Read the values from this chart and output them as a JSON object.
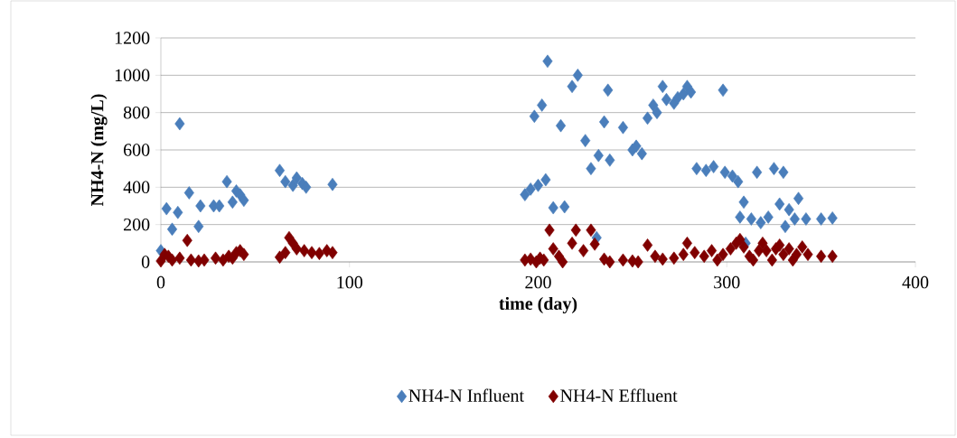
{
  "chart_data": {
    "type": "scatter",
    "xlabel": "time (day)",
    "ylabel": "NH4-N (mg/L)",
    "xlim": [
      0,
      400
    ],
    "xticks": [
      0,
      100,
      200,
      300,
      400
    ],
    "ylim": [
      0,
      1200
    ],
    "yticks": [
      0,
      200,
      400,
      600,
      800,
      1000,
      1200
    ],
    "grid": "y",
    "legend": "bottom",
    "marker": "diamond",
    "series": [
      {
        "name": "NH4-N Influent",
        "color": "#4a7ebb",
        "x": [
          0,
          3,
          6,
          9,
          10,
          15,
          20,
          21,
          28,
          31,
          35,
          38,
          40,
          42,
          44,
          63,
          66,
          70,
          72,
          75,
          77,
          91,
          193,
          196,
          198,
          200,
          202,
          204,
          205,
          208,
          212,
          214,
          218,
          221,
          225,
          228,
          231,
          232,
          235,
          237,
          238,
          245,
          250,
          252,
          255,
          258,
          261,
          263,
          266,
          268,
          272,
          274,
          277,
          279,
          281,
          284,
          289,
          293,
          298,
          299,
          303,
          306,
          307,
          309,
          310,
          313,
          316,
          318,
          322,
          325,
          328,
          330,
          331,
          333,
          336,
          338,
          342,
          350,
          356
        ],
        "values": [
          60,
          285,
          175,
          265,
          740,
          370,
          190,
          300,
          300,
          300,
          430,
          320,
          380,
          360,
          330,
          490,
          430,
          410,
          450,
          420,
          400,
          415,
          360,
          390,
          780,
          410,
          840,
          440,
          1075,
          290,
          730,
          295,
          940,
          1000,
          650,
          500,
          130,
          570,
          750,
          920,
          545,
          720,
          600,
          620,
          580,
          770,
          840,
          800,
          940,
          870,
          850,
          880,
          900,
          940,
          910,
          500,
          490,
          510,
          920,
          480,
          460,
          430,
          240,
          320,
          100,
          230,
          480,
          210,
          240,
          500,
          310,
          480,
          190,
          280,
          230,
          340,
          230,
          230,
          235
        ]
      },
      {
        "name": "NH4-N Effluent",
        "color": "#800000",
        "x": [
          0,
          2,
          4,
          6,
          10,
          14,
          16,
          20,
          23,
          29,
          33,
          36,
          38,
          40,
          42,
          44,
          63,
          66,
          68,
          70,
          72,
          76,
          80,
          84,
          88,
          91,
          193,
          196,
          199,
          201,
          203,
          206,
          208,
          211,
          213,
          218,
          220,
          224,
          228,
          230,
          235,
          238,
          245,
          250,
          253,
          258,
          262,
          266,
          272,
          277,
          279,
          283,
          288,
          292,
          295,
          298,
          302,
          305,
          307,
          309,
          312,
          314,
          317,
          319,
          321,
          324,
          326,
          328,
          330,
          333,
          335,
          337,
          340,
          343,
          350,
          356
        ],
        "values": [
          5,
          40,
          30,
          10,
          20,
          115,
          10,
          5,
          10,
          20,
          10,
          30,
          20,
          50,
          60,
          40,
          25,
          50,
          130,
          100,
          70,
          60,
          50,
          45,
          60,
          50,
          10,
          15,
          0,
          20,
          10,
          170,
          70,
          30,
          0,
          100,
          170,
          60,
          170,
          95,
          15,
          0,
          10,
          5,
          0,
          90,
          30,
          15,
          20,
          40,
          100,
          50,
          30,
          60,
          10,
          40,
          70,
          100,
          120,
          80,
          30,
          10,
          60,
          100,
          60,
          10,
          70,
          90,
          40,
          70,
          10,
          40,
          80,
          40,
          30,
          30
        ]
      }
    ]
  }
}
